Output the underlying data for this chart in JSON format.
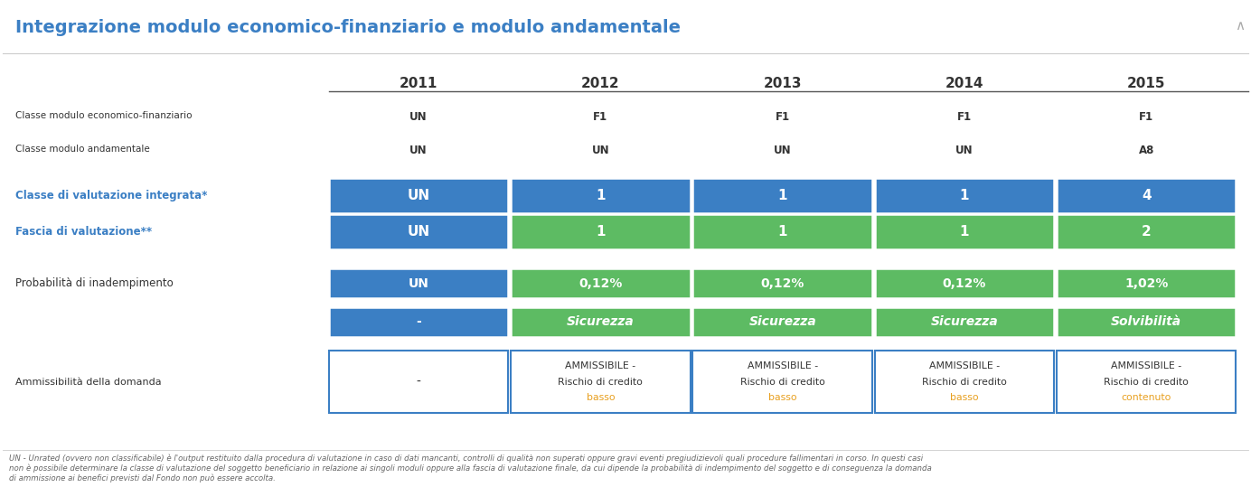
{
  "title": "Integrazione modulo economico-finanziario e modulo andamentale",
  "years": [
    "2011",
    "2012",
    "2013",
    "2014",
    "2015"
  ],
  "row1_label": "Classe modulo economico-finanziario",
  "row2_label": "Classe modulo andamentale",
  "row1_values": [
    "UN",
    "F1",
    "F1",
    "F1",
    "F1"
  ],
  "row2_values": [
    "UN",
    "UN",
    "UN",
    "UN",
    "A8"
  ],
  "label_classe": "Classe di valutazione integrata*",
  "label_fascia": "Fascia di valutazione**",
  "classe_values": [
    "UN",
    "1",
    "1",
    "1",
    "4"
  ],
  "fascia_values": [
    "UN",
    "1",
    "1",
    "1",
    "2"
  ],
  "label_prob": "Probabilità di inadempimento",
  "prob_values": [
    "UN",
    "0,12%",
    "0,12%",
    "0,12%",
    "1,02%"
  ],
  "fascia_labels": [
    "-",
    "Sicurezza",
    "Sicurezza",
    "Sicurezza",
    "Solvibilità"
  ],
  "label_ammiss": "Ammissibilità della domanda",
  "ammiss_col0": "-",
  "ammiss_values": [
    "AMMISSIBILE -\nRischio di credito\nbasso",
    "AMMISSIBILE -\nRischio di credito\nbasso",
    "AMMISSIBILE -\nRischio di credito\nbasso",
    "AMMISSIBILE -\nRischio di credito\ncontenuto"
  ],
  "blue_dark": "#3B7FC4",
  "green_light": "#5DBB63",
  "text_white": "#FFFFFF",
  "text_dark": "#333333",
  "text_blue_label": "#3B7FC4",
  "text_gray": "#666666",
  "text_orange": "#E8A020",
  "bg_white": "#FFFFFF",
  "border_blue": "#3B7FC4",
  "footnote": "UN - Unrated (ovvero non classificabile) è l'output restituito dalla procedura di valutazione in caso di dati mancanti, controlli di qualità non superati oppure gravi eventi pregiudizievoli quali procedure fallimentari in corso. In questi casi\nnon è possibile determinare la classe di valutazione del soggetto beneficiario in relazione ai singoli moduli oppure alla fascia di valutazione finale, da cui dipende la probabilità di indempimento del soggetto e di conseguenza la domanda\ndi ammissione ai benefici previsti dal Fondo non può essere accolta."
}
